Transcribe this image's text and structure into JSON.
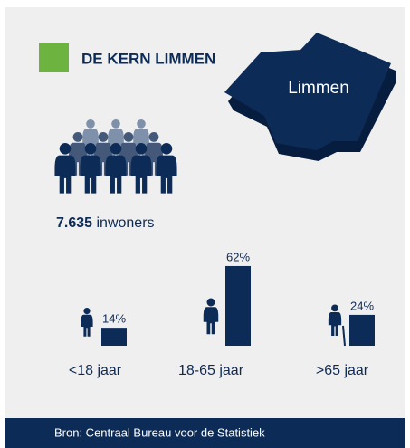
{
  "header": {
    "title": "DE KERN LIMMEN"
  },
  "map": {
    "label": "Limmen"
  },
  "population": {
    "count": "7.635",
    "unit": "inwoners"
  },
  "chart_data": {
    "type": "bar",
    "categories": [
      "<18 jaar",
      "18-65 jaar",
      ">65 jaar"
    ],
    "values": [
      14,
      62,
      24
    ],
    "value_labels": [
      "14%",
      "62%",
      "24%"
    ],
    "color": "#0d2b57"
  },
  "footer": {
    "source": "Bron: Centraal Bureau voor de Statistiek"
  }
}
